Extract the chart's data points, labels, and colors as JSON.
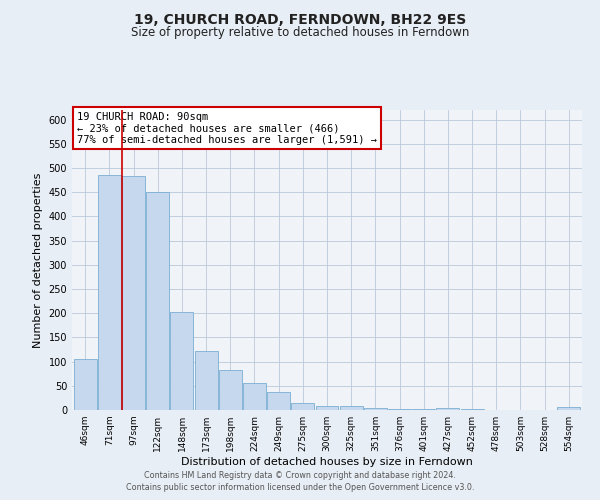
{
  "title": "19, CHURCH ROAD, FERNDOWN, BH22 9ES",
  "subtitle": "Size of property relative to detached houses in Ferndown",
  "xlabel": "Distribution of detached houses by size in Ferndown",
  "ylabel": "Number of detached properties",
  "categories": [
    "46sqm",
    "71sqm",
    "97sqm",
    "122sqm",
    "148sqm",
    "173sqm",
    "198sqm",
    "224sqm",
    "249sqm",
    "275sqm",
    "300sqm",
    "325sqm",
    "351sqm",
    "376sqm",
    "401sqm",
    "427sqm",
    "452sqm",
    "478sqm",
    "503sqm",
    "528sqm",
    "554sqm"
  ],
  "values": [
    105,
    485,
    483,
    451,
    202,
    121,
    82,
    56,
    38,
    15,
    9,
    9,
    4,
    2,
    2,
    5,
    2,
    1,
    1,
    1,
    6
  ],
  "bar_color": "#c5d8ed",
  "bar_edge_color": "#7bafd4",
  "vline_color": "#cc0000",
  "vline_bar_index": 2,
  "annotation_title": "19 CHURCH ROAD: 90sqm",
  "annotation_line2": "← 23% of detached houses are smaller (466)",
  "annotation_line3": "77% of semi-detached houses are larger (1,591) →",
  "annotation_box_color": "#cc0000",
  "ylim": [
    0,
    620
  ],
  "yticks": [
    0,
    50,
    100,
    150,
    200,
    250,
    300,
    350,
    400,
    450,
    500,
    550,
    600
  ],
  "footer_line1": "Contains HM Land Registry data © Crown copyright and database right 2024.",
  "footer_line2": "Contains public sector information licensed under the Open Government Licence v3.0.",
  "bg_color": "#e8eef5",
  "plot_bg_color": "#f0f4f9",
  "grid_color": "#b8c8da"
}
